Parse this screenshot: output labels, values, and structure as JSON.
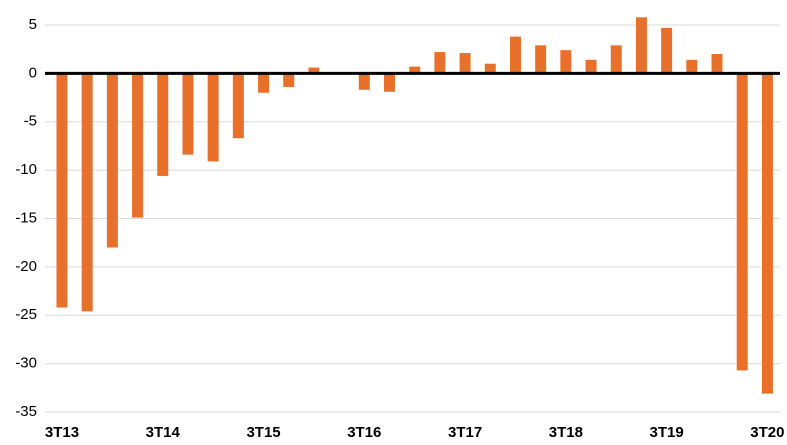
{
  "chart_data": {
    "type": "bar",
    "categories": [
      "3T13",
      null,
      null,
      null,
      "3T14",
      null,
      null,
      null,
      "3T15",
      null,
      null,
      null,
      "3T16",
      null,
      null,
      null,
      "3T17",
      null,
      null,
      null,
      "3T18",
      null,
      null,
      null,
      "3T19",
      null,
      null,
      null,
      "3T20"
    ],
    "values": [
      -24.2,
      -24.6,
      -18,
      -14.9,
      -10.6,
      -8.4,
      -9.1,
      -6.7,
      -2,
      -1.4,
      0.6,
      0,
      -1.7,
      -1.9,
      0.7,
      2.2,
      2.1,
      1.0,
      3.8,
      2.9,
      2.4,
      1.4,
      2.9,
      5.8,
      4.7,
      1.4,
      2.0,
      -30.7,
      -33.1
    ],
    "color": "#e8702a",
    "ylim": [
      -35,
      5
    ],
    "yticks": [
      -35,
      -30,
      -25,
      -20,
      -15,
      -10,
      -5,
      0,
      5
    ],
    "grid": true
  }
}
